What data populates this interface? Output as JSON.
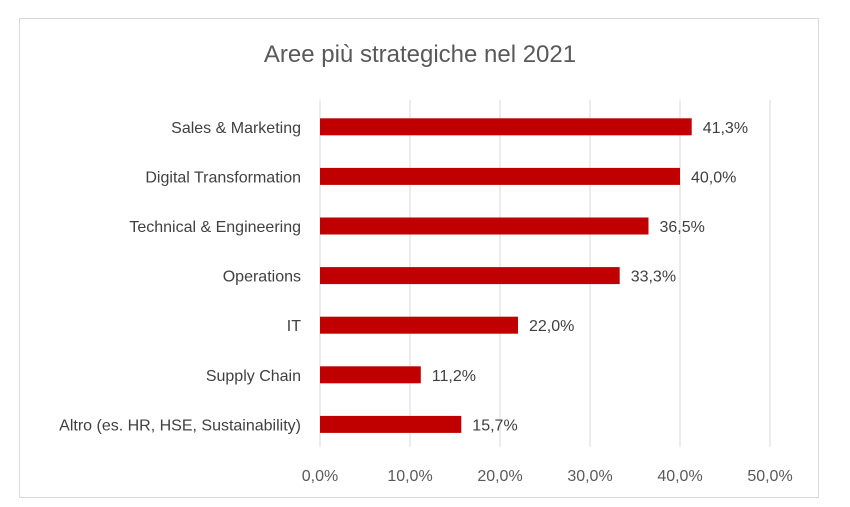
{
  "chart_data": {
    "type": "bar",
    "orientation": "horizontal",
    "title": "Aree più strategiche nel 2021",
    "categories": [
      "Sales & Marketing",
      "Digital Transformation",
      "Technical & Engineering",
      "Operations",
      "IT",
      "Supply Chain",
      "Altro (es. HR, HSE, Sustainability)"
    ],
    "values": [
      41.3,
      40.0,
      36.5,
      33.3,
      22.0,
      11.2,
      15.7
    ],
    "value_labels": [
      "41,3%",
      "40,0%",
      "36,5%",
      "33,3%",
      "22,0%",
      "11,2%",
      "15,7%"
    ],
    "xlim": [
      0,
      50
    ],
    "xticks": [
      0,
      10,
      20,
      30,
      40,
      50
    ],
    "xtick_labels": [
      "0,0%",
      "10,0%",
      "20,0%",
      "30,0%",
      "40,0%",
      "50,0%"
    ],
    "xlabel": "",
    "ylabel": "",
    "grid": true,
    "legend": "none",
    "bar_color": "#c00000"
  }
}
